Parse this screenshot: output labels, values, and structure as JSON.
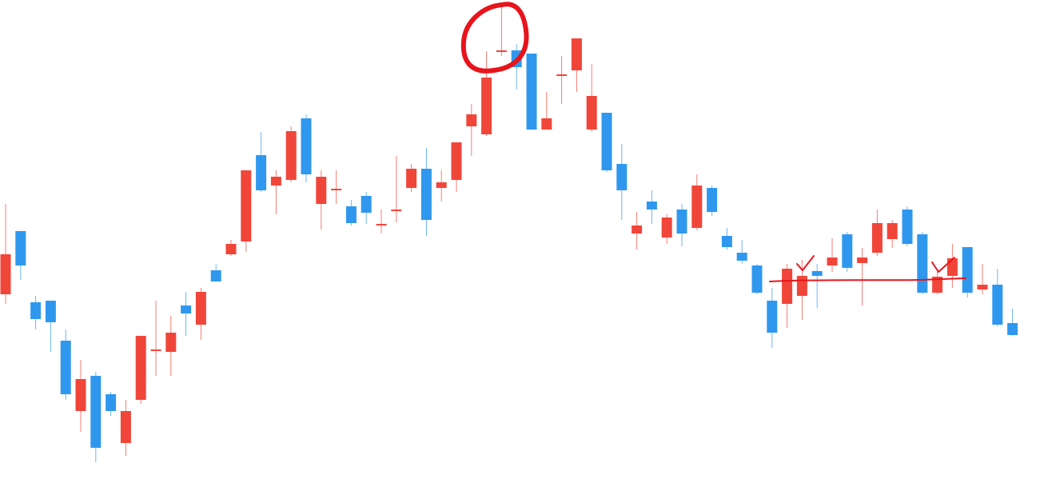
{
  "chart_data": {
    "type": "candlestick",
    "ylim": [
      0,
      604
    ],
    "up_color": "#f0463a",
    "down_color": "#2f98ee",
    "open": [
      236,
      315,
      226,
      228,
      178,
      90,
      134,
      111,
      50,
      104,
      165,
      164,
      222,
      198,
      266,
      286,
      302,
      410,
      372,
      379,
      456,
      349,
      367,
      346,
      359,
      323,
      341,
      369,
      393,
      369,
      379,
      446,
      436,
      540,
      541,
      537,
      442,
      510,
      516,
      442,
      463,
      399,
      312,
      352,
      307,
      342,
      319,
      369,
      309,
      288,
      272,
      228,
      224,
      234,
      265,
      272,
      311,
      275,
      288,
      305,
      342,
      311,
      238,
      259,
      295,
      242,
      248,
      200
    ],
    "high": [
      349,
      315,
      234,
      228,
      192,
      154,
      139,
      114,
      104,
      184,
      228,
      209,
      239,
      244,
      274,
      304,
      391,
      439,
      391,
      446,
      461,
      391,
      391,
      354,
      364,
      342,
      409,
      399,
      419,
      391,
      426,
      474,
      540,
      599,
      549,
      537,
      489,
      534,
      556,
      524,
      463,
      424,
      339,
      366,
      336,
      349,
      386,
      372,
      319,
      304,
      274,
      244,
      274,
      279,
      274,
      306,
      314,
      294,
      342,
      329,
      346,
      314,
      264,
      299,
      295,
      274,
      268,
      218
    ],
    "low": [
      224,
      254,
      192,
      164,
      104,
      64,
      26,
      84,
      34,
      99,
      134,
      134,
      184,
      179,
      252,
      284,
      289,
      364,
      336,
      376,
      376,
      317,
      349,
      322,
      324,
      312,
      326,
      364,
      309,
      352,
      364,
      409,
      434,
      534,
      492,
      442,
      442,
      474,
      489,
      439,
      389,
      329,
      292,
      324,
      299,
      296,
      316,
      334,
      292,
      274,
      236,
      169,
      194,
      204,
      219,
      264,
      264,
      222,
      284,
      294,
      296,
      236,
      236,
      244,
      232,
      236,
      196,
      184
    ],
    "close": [
      286,
      272,
      205,
      201,
      111,
      130,
      44,
      90,
      90,
      184,
      167,
      188,
      212,
      239,
      252,
      299,
      391,
      366,
      383,
      440,
      386,
      383,
      368,
      325,
      338,
      324,
      342,
      393,
      329,
      376,
      426,
      461,
      507,
      541,
      520,
      442,
      456,
      511,
      556,
      484,
      391,
      366,
      322,
      342,
      332,
      312,
      372,
      339,
      295,
      278,
      238,
      188,
      268,
      259,
      259,
      282,
      269,
      282,
      325,
      325,
      299,
      238,
      258,
      281,
      238,
      248,
      198,
      185
    ]
  }
}
